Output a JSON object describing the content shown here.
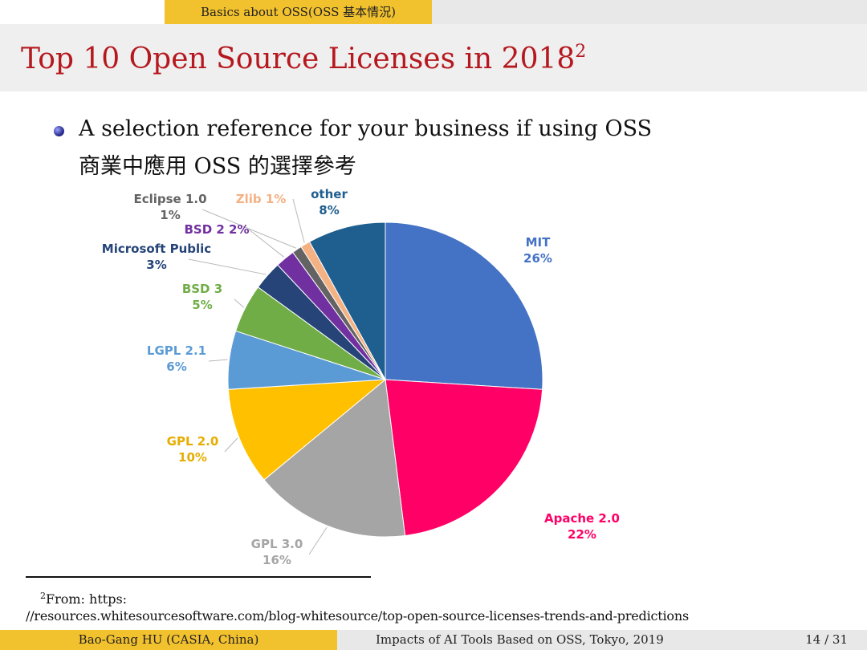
{
  "header": {
    "section": "Basics about OSS(OSS 基本情況)",
    "title": "Top 10 Open Source Licenses in 2018",
    "title_footnote_mark": "2"
  },
  "bullet": {
    "line1": "A selection reference for your business if using OSS",
    "line2": "商業中應用 OSS 的選擇參考"
  },
  "chart_data": {
    "type": "pie",
    "start": "12 o'clock, clockwise",
    "slices": [
      {
        "name": "MIT",
        "value": 26,
        "label": "26%",
        "color": "#4472c4"
      },
      {
        "name": "Apache 2.0",
        "value": 22,
        "label": "22%",
        "color": "#ff0066"
      },
      {
        "name": "GPL 3.0",
        "value": 16,
        "label": "16%",
        "color": "#a5a5a5"
      },
      {
        "name": "GPL 2.0",
        "value": 10,
        "label": "10%",
        "color": "#ffc000"
      },
      {
        "name": "LGPL 2.1",
        "value": 6,
        "label": "6%",
        "color": "#5b9bd5"
      },
      {
        "name": "BSD 3",
        "value": 5,
        "label": "5%",
        "color": "#70ad47"
      },
      {
        "name": "Microsoft Public",
        "value": 3,
        "label": "3%",
        "color": "#264478"
      },
      {
        "name": "BSD 2",
        "value": 2,
        "label": "2%",
        "color": "#7030a0"
      },
      {
        "name": "Eclipse 1.0",
        "value": 1,
        "label": "1%",
        "color": "#636363"
      },
      {
        "name": "Zlib",
        "value": 1,
        "label": "1%",
        "color": "#f4b183"
      },
      {
        "name": "other",
        "value": 8,
        "label": "8%",
        "color": "#1f5f8f"
      }
    ],
    "label_colors": {
      "MIT": "#4472c4",
      "Apache 2.0": "#ff0066",
      "GPL 3.0": "#a5a5a5",
      "GPL 2.0": "#e6ad00",
      "LGPL 2.1": "#5b9bd5",
      "BSD 3": "#70ad47",
      "Microsoft Public": "#264478",
      "BSD 2": "#7030a0",
      "Eclipse 1.0": "#636363",
      "Zlib": "#f4b183",
      "other": "#1f5f8f"
    }
  },
  "footnote": {
    "line1_mark": "2",
    "line1": "From: https:",
    "line2": "//resources.whitesourcesoftware.com/blog-whitesource/top-open-source-licenses-trends-and-predictions"
  },
  "footer": {
    "author": "Bao-Gang HU (CASIA, China)",
    "talk": "Impacts of AI Tools Based on OSS, Tokyo, 2019",
    "page": "14 / 31"
  }
}
